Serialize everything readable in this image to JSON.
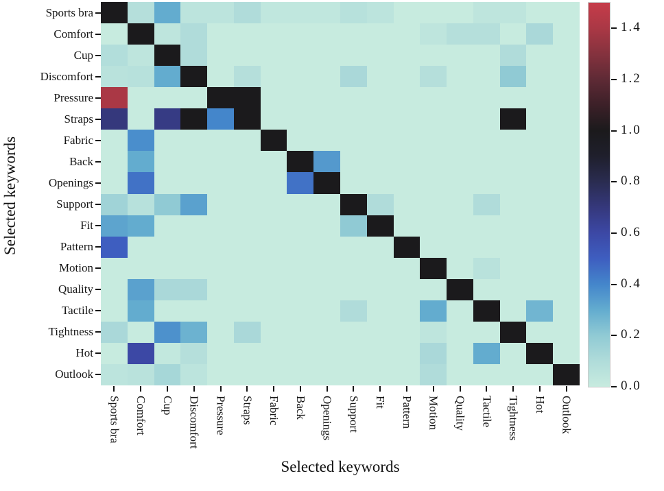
{
  "figure": {
    "background": "#ffffff"
  },
  "chart_data": {
    "type": "heatmap",
    "title": "",
    "xlabel": "Selected keywords",
    "ylabel": "Selected keywords",
    "categories": [
      "Sports bra",
      "Comfort",
      "Cup",
      "Discomfort",
      "Pressure",
      "Straps",
      "Fabric",
      "Back",
      "Openings",
      "Support",
      "Fit",
      "Pattern",
      "Motion",
      "Quality",
      "Tactile",
      "Tightness",
      "Hot",
      "Outlook"
    ],
    "matrix": [
      [
        1.0,
        0.08,
        0.3,
        0.05,
        0.05,
        0.1,
        0.03,
        0.03,
        0.03,
        0.07,
        0.05,
        0,
        0,
        0,
        0.04,
        0.04,
        0,
        0
      ],
      [
        0,
        1.0,
        0.04,
        0.1,
        0,
        0,
        0,
        0,
        0,
        0,
        0,
        0,
        0.04,
        0.08,
        0.08,
        0,
        0.12,
        0
      ],
      [
        0.09,
        0.04,
        1.0,
        0.1,
        0,
        0,
        0,
        0,
        0,
        0,
        0,
        0,
        0,
        0,
        0,
        0.1,
        0,
        0
      ],
      [
        0.06,
        0.07,
        0.3,
        1.0,
        0,
        0.08,
        0,
        0,
        0,
        0.12,
        0,
        0,
        0.08,
        0,
        0,
        0.2,
        0,
        0
      ],
      [
        1.4,
        0,
        0,
        0,
        1.0,
        1.0,
        0,
        0,
        0,
        0,
        0,
        0,
        0,
        0,
        0,
        0,
        0,
        0
      ],
      [
        0.7,
        0,
        0.68,
        1.0,
        0.4,
        1.0,
        0,
        0,
        0,
        0,
        0,
        0,
        0,
        0,
        0,
        1.0,
        0,
        0
      ],
      [
        0,
        0.38,
        0,
        0,
        0,
        0,
        1.0,
        0,
        0,
        0,
        0,
        0,
        0,
        0,
        0,
        0,
        0,
        0
      ],
      [
        0,
        0.3,
        0,
        0,
        0,
        0,
        0,
        1.0,
        0.35,
        0,
        0,
        0,
        0,
        0,
        0,
        0,
        0,
        0
      ],
      [
        0,
        0.45,
        0,
        0,
        0,
        0,
        0,
        0.45,
        1.0,
        0,
        0,
        0,
        0,
        0,
        0,
        0,
        0,
        0
      ],
      [
        0.15,
        0.07,
        0.2,
        0.33,
        0,
        0,
        0,
        0,
        0,
        1.0,
        0.1,
        0,
        0,
        0,
        0.1,
        0,
        0,
        0
      ],
      [
        0.32,
        0.3,
        0,
        0,
        0,
        0,
        0,
        0,
        0,
        0.2,
        1.0,
        0,
        0,
        0,
        0,
        0,
        0,
        0
      ],
      [
        0.5,
        0,
        0,
        0,
        0,
        0,
        0,
        0,
        0,
        0,
        0,
        1.0,
        0,
        0,
        0,
        0,
        0,
        0
      ],
      [
        0,
        0,
        0,
        0,
        0,
        0,
        0,
        0,
        0,
        0,
        0,
        0,
        1.0,
        0,
        0.06,
        0,
        0,
        0
      ],
      [
        0,
        0.33,
        0.12,
        0.12,
        0,
        0,
        0,
        0,
        0,
        0,
        0,
        0,
        0,
        1.0,
        0,
        0,
        0,
        0
      ],
      [
        0,
        0.3,
        0,
        0,
        0,
        0,
        0,
        0,
        0,
        0.1,
        0,
        0,
        0.3,
        0,
        1.0,
        0,
        0.27,
        0
      ],
      [
        0.12,
        0,
        0.37,
        0.28,
        0,
        0.12,
        0,
        0,
        0,
        0,
        0,
        0,
        0.04,
        0,
        0,
        1.0,
        0,
        0
      ],
      [
        0,
        0.6,
        0.02,
        0.08,
        0,
        0,
        0,
        0,
        0,
        0,
        0,
        0,
        0.12,
        0,
        0.3,
        0,
        1.0,
        0
      ],
      [
        0.05,
        0.06,
        0.13,
        0.05,
        0,
        0,
        0,
        0,
        0,
        0,
        0,
        0,
        0.1,
        0,
        0,
        0,
        0,
        1.0
      ]
    ],
    "vmin": 0.0,
    "vmax": 1.5,
    "colorbar_ticks": [
      0.0,
      0.2,
      0.4,
      0.6,
      0.8,
      1.0,
      1.2,
      1.4
    ],
    "colormap_stops": [
      [
        0.0,
        "#c7ebdf"
      ],
      [
        0.1,
        "#b0dcda"
      ],
      [
        0.2,
        "#90cad4"
      ],
      [
        0.3,
        "#63accf"
      ],
      [
        0.4,
        "#4486cb"
      ],
      [
        0.5,
        "#3e5ec0"
      ],
      [
        0.6,
        "#3c48a5"
      ],
      [
        0.7,
        "#35387c"
      ],
      [
        0.8,
        "#2a2c51"
      ],
      [
        0.9,
        "#1f1f2c"
      ],
      [
        1.0,
        "#1b1a1c"
      ],
      [
        1.1,
        "#3c2028"
      ],
      [
        1.2,
        "#5e2a35"
      ],
      [
        1.3,
        "#85323e"
      ],
      [
        1.4,
        "#aa3845"
      ],
      [
        1.5,
        "#c63c4a"
      ]
    ],
    "grid": false,
    "legend_position": "right-colorbar"
  }
}
